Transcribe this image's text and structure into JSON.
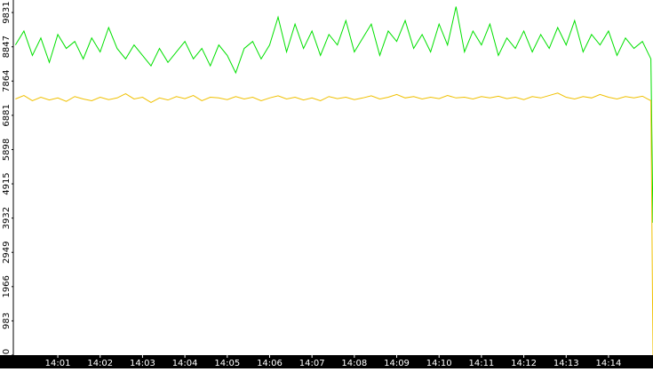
{
  "chart_data": {
    "type": "line",
    "xlim": [
      -0.05,
      15.05
    ],
    "xticks": [
      {
        "value": 1,
        "label": "14:01"
      },
      {
        "value": 2,
        "label": "14:02"
      },
      {
        "value": 3,
        "label": "14:03"
      },
      {
        "value": 4,
        "label": "14:04"
      },
      {
        "value": 5,
        "label": "14:05"
      },
      {
        "value": 6,
        "label": "14:06"
      },
      {
        "value": 7,
        "label": "14:07"
      },
      {
        "value": 8,
        "label": "14:08"
      },
      {
        "value": 9,
        "label": "14:09"
      },
      {
        "value": 10,
        "label": "14:10"
      },
      {
        "value": 11,
        "label": "14:11"
      },
      {
        "value": 12,
        "label": "14:12"
      },
      {
        "value": 13,
        "label": "14:13"
      },
      {
        "value": 14,
        "label": "14:14"
      }
    ],
    "ylim": [
      0,
      10190
    ],
    "yticks": [
      0,
      983,
      1966,
      2949,
      3932,
      4915,
      5898,
      6881,
      7864,
      8847,
      9831
    ],
    "grid": false,
    "x": [
      0,
      0.2,
      0.4,
      0.6,
      0.8,
      1,
      1.2,
      1.4,
      1.6,
      1.8,
      2,
      2.2,
      2.4,
      2.6,
      2.8,
      3,
      3.2,
      3.4,
      3.6,
      3.8,
      4,
      4.2,
      4.4,
      4.6,
      4.8,
      5,
      5.2,
      5.4,
      5.6,
      5.8,
      6,
      6.2,
      6.4,
      6.6,
      6.8,
      7,
      7.2,
      7.4,
      7.6,
      7.8,
      8,
      8.2,
      8.4,
      8.6,
      8.8,
      9,
      9.2,
      9.4,
      9.6,
      9.8,
      10,
      10.2,
      10.4,
      10.6,
      10.8,
      11,
      11.2,
      11.4,
      11.6,
      11.8,
      12,
      12.2,
      12.4,
      12.6,
      12.8,
      13,
      13.2,
      13.4,
      13.6,
      13.8,
      14,
      14.2,
      14.4,
      14.6,
      14.8,
      15,
      15.05
    ],
    "series": [
      {
        "color": "#00e000",
        "values": [
          8900,
          9300,
          8600,
          9100,
          8400,
          9200,
          8800,
          9000,
          8500,
          9100,
          8700,
          9400,
          8800,
          8500,
          8900,
          8600,
          8300,
          8800,
          8400,
          8700,
          9000,
          8500,
          8800,
          8300,
          8900,
          8600,
          8100,
          8800,
          9000,
          8500,
          8900,
          9700,
          8700,
          9500,
          8800,
          9300,
          8600,
          9200,
          8900,
          9600,
          8700,
          9100,
          9500,
          8600,
          9300,
          9000,
          9600,
          8800,
          9200,
          8700,
          9500,
          8900,
          10000,
          8700,
          9300,
          8900,
          9500,
          8600,
          9100,
          8800,
          9300,
          8700,
          9200,
          8800,
          9400,
          8900,
          9600,
          8700,
          9200,
          8900,
          9300,
          8600,
          9100,
          8800,
          9000,
          8500,
          3800
        ]
      },
      {
        "color": "#f0c000",
        "values": [
          7350,
          7450,
          7300,
          7400,
          7320,
          7380,
          7280,
          7420,
          7350,
          7300,
          7400,
          7330,
          7380,
          7500,
          7350,
          7400,
          7250,
          7380,
          7320,
          7420,
          7360,
          7450,
          7300,
          7400,
          7380,
          7330,
          7420,
          7350,
          7400,
          7300,
          7380,
          7440,
          7350,
          7400,
          7320,
          7380,
          7300,
          7420,
          7360,
          7400,
          7330,
          7380,
          7440,
          7350,
          7400,
          7480,
          7380,
          7420,
          7350,
          7400,
          7360,
          7450,
          7380,
          7400,
          7350,
          7420,
          7380,
          7430,
          7360,
          7400,
          7330,
          7420,
          7380,
          7450,
          7520,
          7400,
          7350,
          7420,
          7380,
          7480,
          7400,
          7350,
          7420,
          7380,
          7430,
          7300,
          0
        ]
      }
    ]
  }
}
